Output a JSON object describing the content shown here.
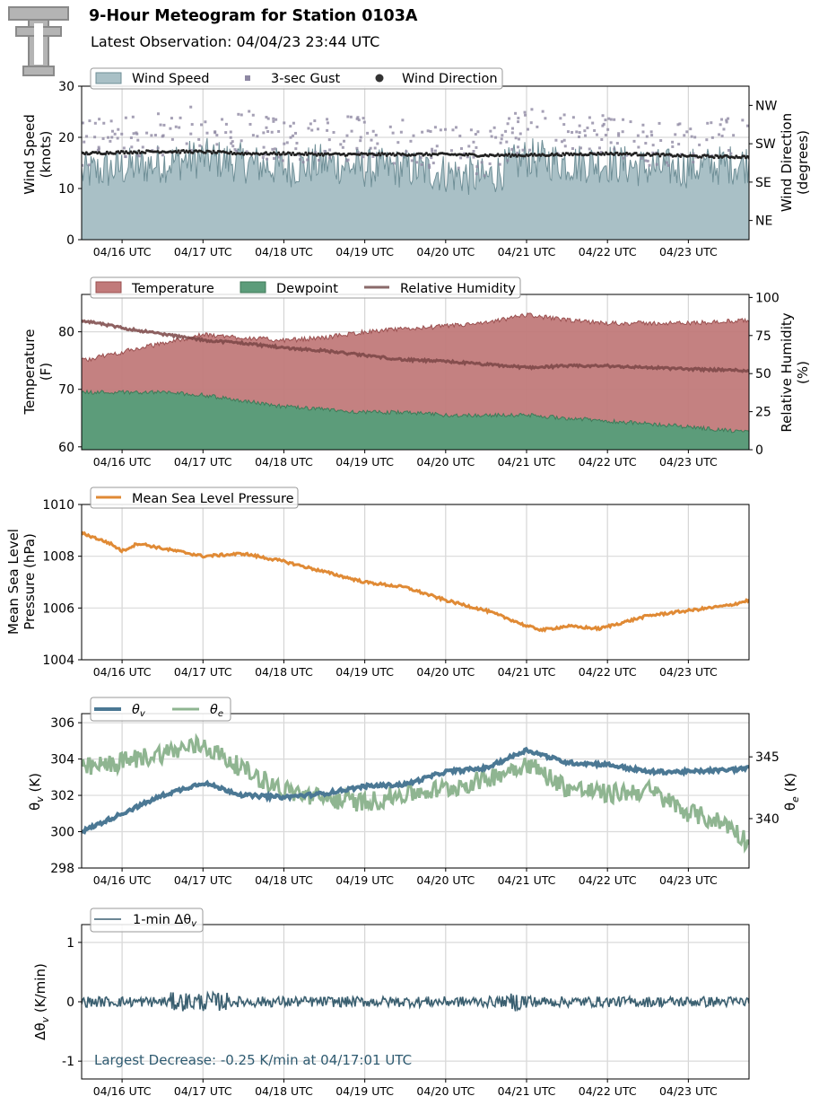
{
  "header": {
    "title": "9-Hour Meteogram for Station 0103A",
    "subtitle": "Latest Observation: 04/04/23 23:44 UTC",
    "logo_text": "T"
  },
  "x_ticks": [
    "04/16 UTC",
    "04/17 UTC",
    "04/18 UTC",
    "04/19 UTC",
    "04/20 UTC",
    "04/21 UTC",
    "04/22 UTC",
    "04/23 UTC"
  ],
  "x_tick_days": [
    1,
    2,
    3,
    4,
    5,
    6,
    7,
    8
  ],
  "colors": {
    "wind_fill": "#a9c0c6",
    "wind_line": "#6f8f97",
    "gust": "#8e88a3",
    "direction": "#222222",
    "temperature": "#c17a7a",
    "dewpoint": "#5c9c7a",
    "rh": "#8a6a6a",
    "pressure": "#e08a35",
    "theta_v": "#4b7894",
    "theta_e": "#8fb591",
    "dtheta": "#3a5f70",
    "annotation": "#2e5a70"
  },
  "chart_data": [
    {
      "type": "area",
      "panel": "wind",
      "ylabel": "Wind Speed\n(knots)",
      "y2label": "Wind Direction\n(degrees)",
      "ylim": [
        0,
        30
      ],
      "yticks": [
        0,
        10,
        20,
        30
      ],
      "y2ticks": [
        "NE",
        "SE",
        "SW",
        "NW"
      ],
      "y2tick_values": [
        45,
        135,
        225,
        315
      ],
      "y2lim": [
        0,
        360
      ],
      "legend": [
        "Wind Speed",
        "3-sec Gust",
        "Wind Direction"
      ],
      "x": [
        0.5,
        1.0,
        1.5,
        2.0,
        2.5,
        3.0,
        3.5,
        4.0,
        4.5,
        5.0,
        5.5,
        6.0,
        6.5,
        7.0,
        7.5,
        8.0,
        8.75
      ],
      "series": [
        {
          "name": "Wind Speed",
          "values": [
            13,
            14,
            15,
            16,
            15,
            14,
            15,
            14,
            14,
            13,
            12,
            16,
            15,
            15,
            14,
            14,
            15
          ]
        },
        {
          "name": "3-sec Gust",
          "values": [
            18,
            19,
            20,
            21,
            20,
            18,
            19,
            19,
            18,
            17,
            16,
            21,
            20,
            19,
            18,
            18,
            19
          ]
        },
        {
          "name": "Wind Direction",
          "values": [
            202,
            205,
            207,
            206,
            202,
            202,
            200,
            200,
            200,
            200,
            198,
            198,
            200,
            202,
            200,
            196,
            194
          ]
        }
      ]
    },
    {
      "type": "area",
      "panel": "temperature",
      "ylabel": "Temperature\n(F)",
      "y2label": "Relative Humidity\n(%)",
      "ylim": [
        59.5,
        86.5
      ],
      "yticks": [
        60,
        70,
        80
      ],
      "y2lim": [
        0,
        102
      ],
      "y2ticks": [
        0,
        25,
        50,
        75,
        100
      ],
      "legend": [
        "Temperature",
        "Dewpoint",
        "Relative Humidity"
      ],
      "x": [
        0.5,
        1.0,
        1.5,
        2.0,
        2.5,
        3.0,
        3.5,
        4.0,
        4.5,
        5.0,
        5.5,
        6.0,
        6.5,
        7.0,
        7.5,
        8.0,
        8.75
      ],
      "series": [
        {
          "name": "Temperature",
          "values": [
            75,
            76.5,
            78,
            79.5,
            79,
            78.5,
            79,
            80,
            80.5,
            81,
            81.5,
            83,
            82,
            81.5,
            81.5,
            81.5,
            82
          ]
        },
        {
          "name": "Dewpoint",
          "values": [
            69.5,
            69.5,
            69.5,
            69,
            68,
            67,
            66.5,
            66,
            66,
            65.5,
            65.5,
            65.5,
            65,
            64.5,
            64,
            63.5,
            62.5
          ]
        },
        {
          "name": "Relative Humidity",
          "values": [
            85,
            80,
            76,
            72,
            70,
            67,
            65,
            62,
            59,
            58,
            56,
            54,
            55,
            55,
            54,
            53,
            52
          ]
        }
      ]
    },
    {
      "type": "line",
      "panel": "pressure",
      "ylabel": "Mean Sea Level\nPressure (hPa)",
      "ylim": [
        1004,
        1010
      ],
      "yticks": [
        1004,
        1006,
        1008,
        1010
      ],
      "legend": [
        "Mean Sea Level Pressure"
      ],
      "x": [
        0.5,
        0.85,
        1.0,
        1.2,
        1.5,
        1.85,
        2.0,
        2.5,
        3.0,
        3.5,
        4.0,
        4.5,
        5.0,
        5.5,
        5.85,
        6.0,
        6.2,
        6.5,
        6.9,
        7.5,
        8.0,
        8.5,
        8.75
      ],
      "series": [
        {
          "name": "Mean Sea Level Pressure",
          "values": [
            1008.9,
            1008.5,
            1008.2,
            1008.5,
            1008.3,
            1008.1,
            1008.0,
            1008.1,
            1007.8,
            1007.4,
            1007.0,
            1006.8,
            1006.3,
            1005.9,
            1005.5,
            1005.3,
            1005.15,
            1005.3,
            1005.2,
            1005.7,
            1005.9,
            1006.1,
            1006.3
          ]
        }
      ]
    },
    {
      "type": "line",
      "panel": "theta",
      "ylabel": "θv (K)",
      "y2label": "θe (K)",
      "ylim": [
        298,
        306.5
      ],
      "yticks": [
        298,
        300,
        302,
        304,
        306
      ],
      "y2lim": [
        336,
        348.5
      ],
      "y2ticks": [
        340,
        345
      ],
      "legend": [
        "θv",
        "θe"
      ],
      "x": [
        0.5,
        1.0,
        1.5,
        2.0,
        2.5,
        3.0,
        3.5,
        4.0,
        4.5,
        5.0,
        5.5,
        6.0,
        6.5,
        7.0,
        7.5,
        8.0,
        8.5,
        8.75
      ],
      "series": [
        {
          "name": "θv",
          "values": [
            300.0,
            301.0,
            302.0,
            302.7,
            302.0,
            301.9,
            302.1,
            302.5,
            302.6,
            303.3,
            303.5,
            304.5,
            303.8,
            303.7,
            303.3,
            303.3,
            303.4,
            303.5
          ]
        },
        {
          "name": "θe",
          "values": [
            344.0,
            344.6,
            345.3,
            346.0,
            344.0,
            342.3,
            341.6,
            341.3,
            342.0,
            342.4,
            343.2,
            344.5,
            342.5,
            342.0,
            342.3,
            340.5,
            339.5,
            338.0
          ]
        }
      ]
    },
    {
      "type": "line",
      "panel": "dtheta",
      "ylabel": "Δθv (K/min)",
      "ylim": [
        -1.3,
        1.3
      ],
      "yticks": [
        -1,
        0,
        1
      ],
      "legend": [
        "1-min Δθv"
      ],
      "annotation": "Largest Decrease: -0.25 K/min at 04/17:01 UTC",
      "series": [
        {
          "name": "1-min Δθv",
          "values": [
            0.15,
            -0.25,
            0.3
          ]
        }
      ]
    }
  ]
}
